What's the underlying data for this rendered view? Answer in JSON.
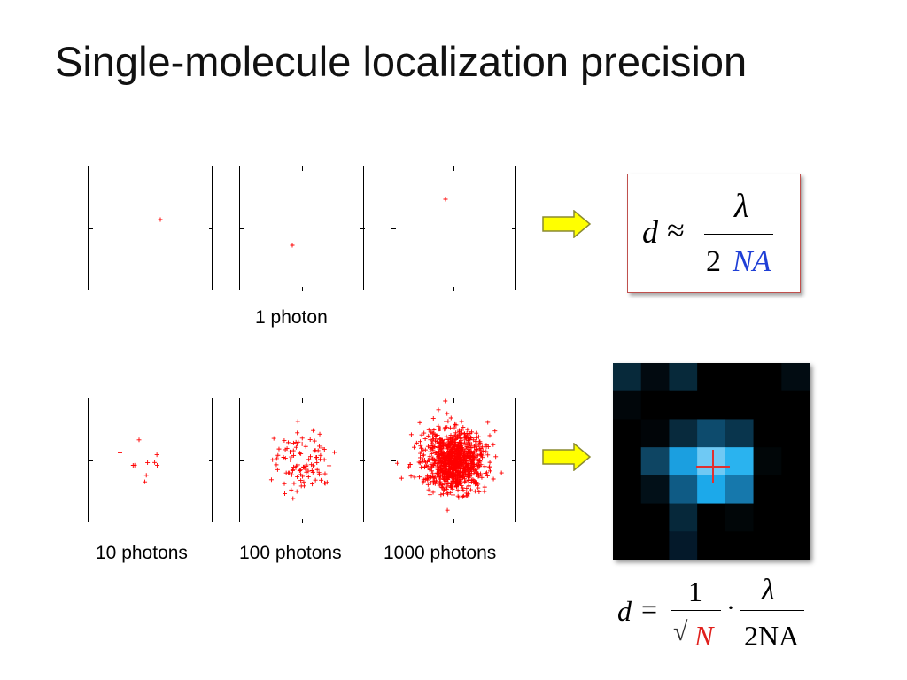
{
  "slide": {
    "title": "Single-molecule localization precision"
  },
  "panels": {
    "top_caption": "1 photon",
    "bottom_captions": [
      "10 photons",
      "100 photons",
      "1000 photons"
    ],
    "photon_counts": [
      1,
      1,
      1,
      10,
      100,
      1000
    ],
    "marker_color": "#ff0000"
  },
  "formula_top": {
    "lhs": "d",
    "rel": "≈",
    "numerator": "λ",
    "den_coeff": "2",
    "den_var": "NA",
    "border_color": "#c0504d",
    "var_color": "#1f3fd6"
  },
  "formula_bottom": {
    "lhs": "d",
    "eq": "=",
    "frac1_num": "1",
    "sqrt": "√",
    "frac1_den": "N",
    "dot": "·",
    "frac2_num": "λ",
    "frac2_den": "2NA",
    "n_color": "#e0201c"
  },
  "arrows": {
    "fill": "#ffff00",
    "stroke": "#8a8a30"
  },
  "psf_image": {
    "rows": 7,
    "cols": 7,
    "cursor_color": "#e03030"
  }
}
